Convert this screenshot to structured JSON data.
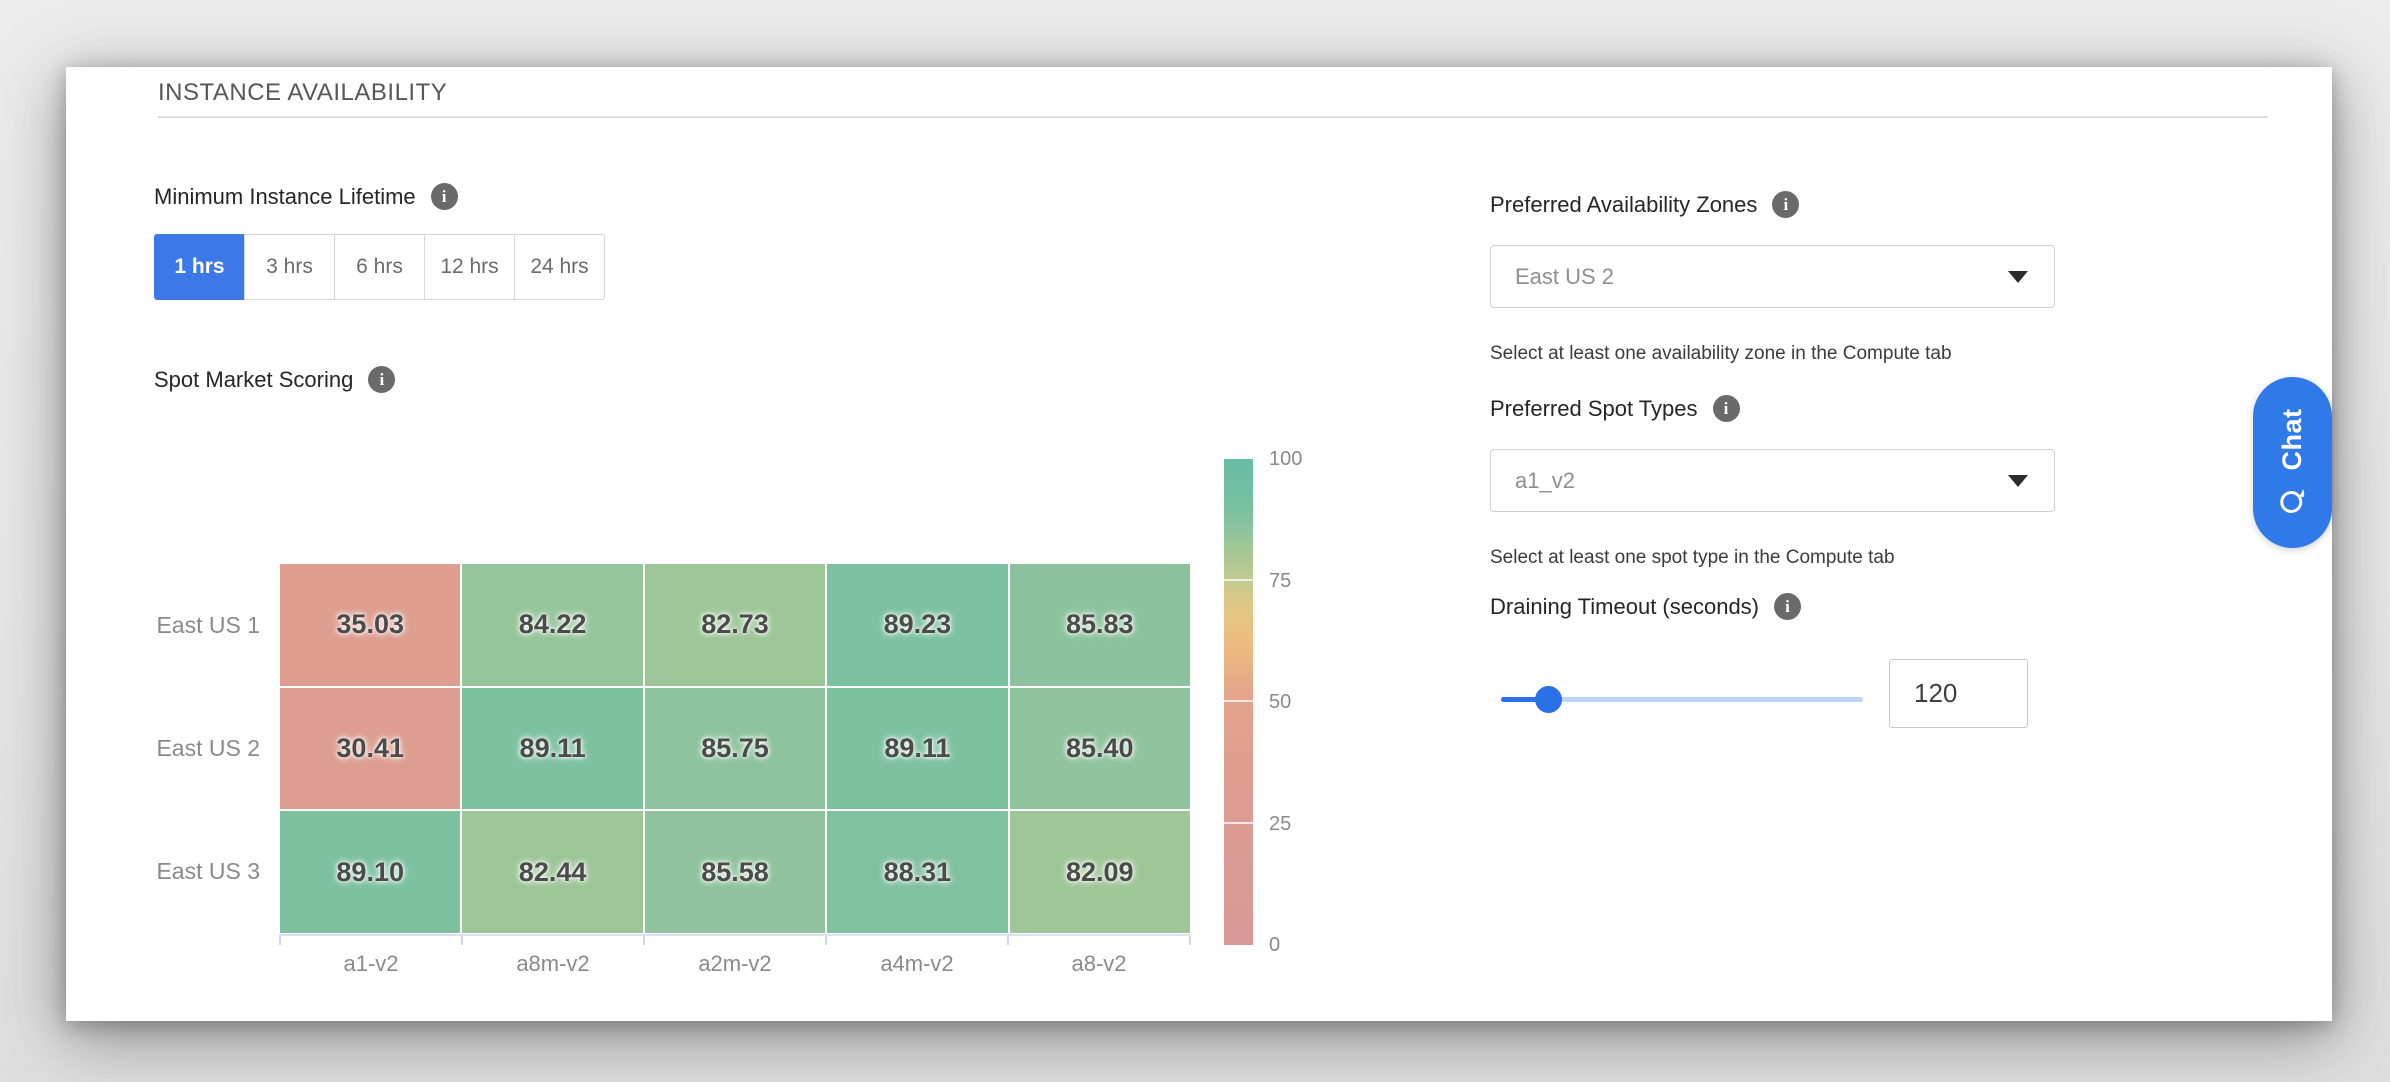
{
  "section": {
    "title": "INSTANCE AVAILABILITY"
  },
  "lifetime": {
    "label": "Minimum Instance Lifetime",
    "options": [
      "1 hrs",
      "3 hrs",
      "6 hrs",
      "12 hrs",
      "24 hrs"
    ],
    "selected_index": 0
  },
  "chart_data": {
    "type": "heatmap",
    "title": "Spot Market Scoring",
    "rows": [
      "East US 1",
      "East US 2",
      "East US 3"
    ],
    "columns": [
      "a1-v2",
      "a8m-v2",
      "a2m-v2",
      "a4m-v2",
      "a8-v2"
    ],
    "values": [
      [
        35.03,
        84.22,
        82.73,
        89.23,
        85.83
      ],
      [
        30.41,
        89.11,
        85.75,
        89.11,
        85.4
      ],
      [
        89.1,
        82.44,
        85.58,
        88.31,
        82.09
      ]
    ],
    "color_range": [
      0,
      100
    ],
    "colorbar_ticks": [
      100,
      75,
      50,
      25,
      0
    ],
    "color_stops": [
      [
        0,
        "#d79a96"
      ],
      [
        25,
        "#dc9c93"
      ],
      [
        50,
        "#e2a28c"
      ],
      [
        58,
        "#eab383"
      ],
      [
        64,
        "#edc07e"
      ],
      [
        70,
        "#dfc884"
      ],
      [
        75,
        "#c3cb90"
      ],
      [
        80,
        "#a9c794"
      ],
      [
        84,
        "#96c59a"
      ],
      [
        87,
        "#86c29f"
      ],
      [
        90,
        "#79c0a2"
      ],
      [
        100,
        "#67bda5"
      ]
    ],
    "legend_position": "right",
    "grid": false
  },
  "zones": {
    "label": "Preferred Availability Zones",
    "value": "East US 2",
    "helper": "Select at least one availability zone in the Compute tab"
  },
  "spot_types": {
    "label": "Preferred Spot Types",
    "value": "a1_v2",
    "helper": "Select at least one spot type in the Compute tab"
  },
  "draining": {
    "label": "Draining Timeout (seconds)",
    "value": "120",
    "slider_percent": 13
  },
  "chat": {
    "label": "Chat"
  },
  "icons": {
    "info": "info-icon",
    "caret": "chevron-down-icon",
    "chat_bubble": "chat-bubble-icon"
  },
  "colors": {
    "accent_blue": "#3d78e8",
    "chat_blue": "#2f79e9",
    "slider_active": "#2a70e6",
    "slider_rest": "#bdd3f7",
    "info_gray": "#6a6a6a"
  }
}
